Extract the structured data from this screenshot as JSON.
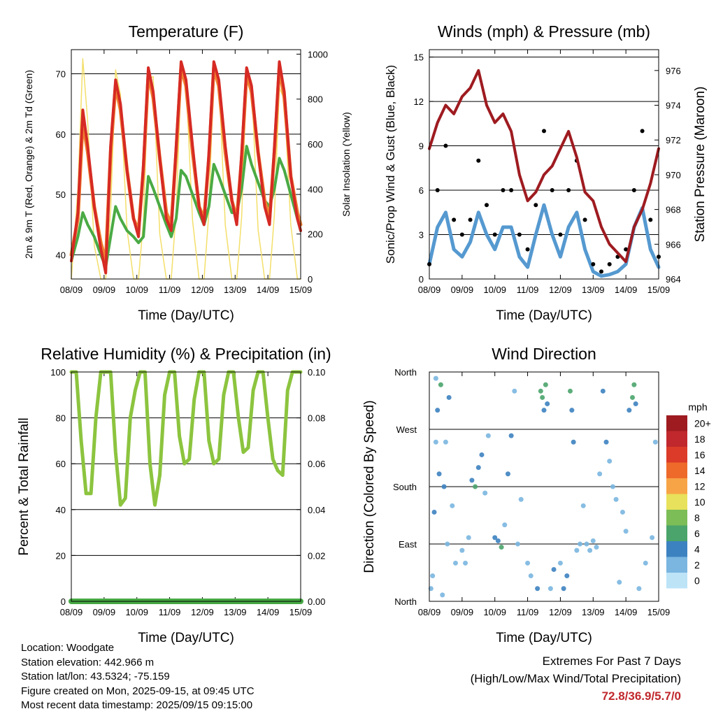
{
  "x_ticks": [
    "08/09",
    "09/09",
    "10/09",
    "11/09",
    "12/09",
    "13/09",
    "14/09",
    "15/09"
  ],
  "colors": {
    "temp2m": "#d62a24",
    "temp9m": "#f08030",
    "dewpoint": "#4aaa44",
    "solar": "#f3df6a",
    "wind": "#000000",
    "gust": "#5599d0",
    "pressure": "#9e1b20",
    "rh": "#8cc43f",
    "precip": "#46a843"
  },
  "chart_data": [
    {
      "id": "temperature",
      "type": "line",
      "title": "Temperature (F)",
      "xlabel": "Time (Day/UTC)",
      "ylabel": "2m & 9m T (Red, Orange) & 2m Td (Green)",
      "y2label": "Solar Insolation (Yellow)",
      "ylim": [
        36,
        74
      ],
      "y_ticks": [
        "40",
        "50",
        "60",
        "70"
      ],
      "y2lim": [
        0,
        1020
      ],
      "y2_ticks": [
        "0",
        "200",
        "400",
        "600",
        "800",
        "1000"
      ],
      "x": [
        0,
        0.2,
        0.35,
        0.5,
        0.7,
        0.9,
        1.05,
        1.2,
        1.35,
        1.5,
        1.7,
        1.9,
        2.05,
        2.2,
        2.35,
        2.5,
        2.7,
        2.9,
        3.05,
        3.2,
        3.35,
        3.5,
        3.7,
        3.9,
        4.05,
        4.2,
        4.35,
        4.5,
        4.7,
        4.9,
        5.05,
        5.2,
        5.35,
        5.5,
        5.7,
        5.9,
        6.05,
        6.2,
        6.35,
        6.5,
        6.7,
        6.9,
        7.0
      ],
      "series": [
        {
          "key": "temp2m",
          "values": [
            39,
            47,
            64,
            58,
            48,
            41,
            37,
            58,
            69,
            65,
            54,
            46,
            43,
            55,
            71,
            67,
            56,
            46,
            44,
            58,
            72,
            69,
            58,
            48,
            45,
            57,
            72,
            69,
            58,
            49,
            45,
            57,
            71,
            68,
            57,
            48,
            45,
            58,
            72,
            67,
            53,
            46,
            44
          ]
        },
        {
          "key": "temp9m",
          "values": [
            40,
            46,
            62,
            57,
            48,
            42,
            39,
            57,
            68,
            64,
            54,
            46,
            44,
            54,
            70,
            66,
            56,
            47,
            45,
            57,
            71,
            68,
            57,
            48,
            46,
            56,
            71,
            68,
            57,
            49,
            46,
            56,
            70,
            67,
            57,
            49,
            46,
            57,
            71,
            66,
            53,
            47,
            45
          ]
        },
        {
          "key": "dewpoint",
          "values": [
            39,
            43,
            47,
            45,
            43,
            40,
            38,
            43,
            48,
            46,
            44,
            43,
            42,
            43,
            53,
            51,
            48,
            45,
            43,
            46,
            54,
            53,
            50,
            47,
            45,
            48,
            55,
            53,
            50,
            47,
            47,
            51,
            58,
            55,
            52,
            49,
            48,
            51,
            56,
            54,
            50,
            46,
            44
          ]
        },
        {
          "key": "solar",
          "y_axis": "right",
          "values": [
            0,
            400,
            980,
            700,
            150,
            0,
            0,
            300,
            930,
            820,
            220,
            0,
            0,
            260,
            890,
            900,
            200,
            0,
            0,
            300,
            900,
            880,
            260,
            0,
            0,
            300,
            940,
            900,
            240,
            0,
            0,
            280,
            920,
            880,
            220,
            0,
            0,
            290,
            850,
            800,
            240,
            0,
            0
          ]
        }
      ]
    },
    {
      "id": "winds",
      "type": "line",
      "title": "Winds (mph) & Pressure (mb)",
      "xlabel": "Time (Day/UTC)",
      "ylabel": "Sonic/Prop Wind & Gust (Blue, Black)",
      "y2label": "Station Pressure (Maroon)",
      "ylim": [
        0,
        15.5
      ],
      "y_ticks": [
        "0",
        "3",
        "6",
        "9",
        "12",
        "15"
      ],
      "y2lim": [
        964,
        977.2
      ],
      "y2_ticks": [
        "964",
        "966",
        "968",
        "970",
        "972",
        "974",
        "976"
      ],
      "x": [
        0,
        0.25,
        0.5,
        0.75,
        1,
        1.25,
        1.5,
        1.75,
        2,
        2.25,
        2.5,
        2.75,
        3,
        3.25,
        3.5,
        3.75,
        4,
        4.25,
        4.5,
        4.75,
        5,
        5.25,
        5.5,
        5.75,
        6,
        6.25,
        6.5,
        6.75,
        7
      ],
      "series": [
        {
          "key": "gust",
          "values": [
            1,
            3.5,
            4.5,
            2,
            1.5,
            2.5,
            4.5,
            3,
            2,
            3.5,
            3.5,
            1.5,
            0.8,
            3,
            5,
            3,
            1.5,
            3.5,
            4.5,
            2,
            0.5,
            0.2,
            0.3,
            0.5,
            1,
            3.5,
            4.8,
            2,
            0.8
          ]
        },
        {
          "key": "wind",
          "values": [
            1,
            6,
            9,
            4,
            3,
            4,
            8,
            5,
            3,
            6,
            6,
            3,
            2,
            5,
            10,
            6,
            3,
            6,
            8,
            4,
            1,
            0.5,
            1,
            1.5,
            2,
            6,
            10,
            4,
            1.5
          ]
        },
        {
          "key": "pressure",
          "y_axis": "right",
          "values": [
            971.5,
            973,
            974,
            973.5,
            974.5,
            975,
            976,
            974,
            973,
            973.5,
            972.5,
            970,
            968.5,
            969,
            970,
            970.5,
            971.5,
            972.5,
            971,
            969,
            968.5,
            967,
            966,
            965.5,
            965,
            967,
            968,
            969.5,
            971.5
          ]
        }
      ]
    },
    {
      "id": "humidity",
      "type": "line",
      "title": "Relative Humidity (%) & Precipitation (in)",
      "xlabel": "Time (Day/UTC)",
      "ylabel": "Percent & Total Rainfall",
      "ylim": [
        0,
        100
      ],
      "y_ticks": [
        "0",
        "20",
        "40",
        "60",
        "80",
        "100"
      ],
      "y2lim": [
        0,
        0.1
      ],
      "y2_ticks": [
        "0.00",
        "0.02",
        "0.04",
        "0.06",
        "0.08",
        "0.10"
      ],
      "x": [
        0,
        0.15,
        0.3,
        0.45,
        0.6,
        0.75,
        0.9,
        1.05,
        1.2,
        1.35,
        1.5,
        1.65,
        1.8,
        1.95,
        2.1,
        2.25,
        2.4,
        2.55,
        2.7,
        2.85,
        3.0,
        3.15,
        3.3,
        3.45,
        3.6,
        3.75,
        3.9,
        4.05,
        4.2,
        4.35,
        4.5,
        4.65,
        4.8,
        4.95,
        5.1,
        5.25,
        5.4,
        5.55,
        5.7,
        5.85,
        6.0,
        6.15,
        6.3,
        6.45,
        6.6,
        6.75,
        6.9,
        7.0
      ],
      "series": [
        {
          "key": "rh",
          "values": [
            100,
            100,
            70,
            47,
            47,
            80,
            100,
            100,
            100,
            65,
            42,
            45,
            80,
            92,
            100,
            100,
            60,
            42,
            55,
            90,
            100,
            100,
            72,
            60,
            62,
            88,
            100,
            100,
            70,
            60,
            62,
            90,
            100,
            100,
            80,
            65,
            67,
            92,
            100,
            100,
            80,
            62,
            57,
            55,
            92,
            100,
            100,
            100
          ]
        },
        {
          "key": "precip",
          "y_axis": "right",
          "values": [
            0,
            0,
            0,
            0,
            0,
            0,
            0,
            0,
            0,
            0,
            0,
            0,
            0,
            0,
            0,
            0,
            0,
            0,
            0,
            0,
            0,
            0,
            0,
            0,
            0,
            0,
            0,
            0,
            0,
            0,
            0,
            0,
            0,
            0,
            0,
            0,
            0,
            0,
            0,
            0,
            0,
            0,
            0,
            0,
            0,
            0,
            0,
            0
          ]
        }
      ]
    },
    {
      "id": "direction",
      "type": "scatter",
      "title": "Wind Direction",
      "xlabel": "Time (Day/UTC)",
      "ylabel": "Direction (Colored By Speed)",
      "ylim": [
        0,
        360
      ],
      "y_tick_labels": [
        "North",
        "East",
        "South",
        "West",
        "North"
      ],
      "points": [
        [
          0.05,
          20,
          1
        ],
        [
          0.1,
          40,
          2
        ],
        [
          0.15,
          140,
          3
        ],
        [
          0.2,
          250,
          1
        ],
        [
          0.2,
          350,
          2
        ],
        [
          0.25,
          300,
          4
        ],
        [
          0.3,
          200,
          3
        ],
        [
          0.35,
          340,
          5
        ],
        [
          0.4,
          10,
          2
        ],
        [
          0.45,
          180,
          4
        ],
        [
          0.5,
          250,
          2
        ],
        [
          0.55,
          90,
          1
        ],
        [
          0.6,
          320,
          3
        ],
        [
          0.7,
          150,
          2
        ],
        [
          0.8,
          60,
          1
        ],
        [
          1.0,
          80,
          1
        ],
        [
          1.1,
          60,
          2
        ],
        [
          1.2,
          100,
          1
        ],
        [
          1.3,
          190,
          4
        ],
        [
          1.4,
          180,
          5
        ],
        [
          1.5,
          210,
          4
        ],
        [
          1.6,
          230,
          3
        ],
        [
          1.7,
          170,
          2
        ],
        [
          1.8,
          260,
          1
        ],
        [
          2.0,
          100,
          3
        ],
        [
          2.1,
          95,
          4
        ],
        [
          2.2,
          85,
          5
        ],
        [
          2.3,
          120,
          2
        ],
        [
          2.4,
          200,
          4
        ],
        [
          2.5,
          260,
          3
        ],
        [
          2.6,
          330,
          2
        ],
        [
          2.7,
          90,
          1
        ],
        [
          2.8,
          160,
          1
        ],
        [
          3.0,
          60,
          1
        ],
        [
          3.1,
          40,
          2
        ],
        [
          3.3,
          20,
          3
        ],
        [
          3.4,
          330,
          5
        ],
        [
          3.45,
          320,
          6
        ],
        [
          3.5,
          300,
          4
        ],
        [
          3.55,
          340,
          5
        ],
        [
          3.6,
          310,
          3
        ],
        [
          3.7,
          20,
          2
        ],
        [
          3.8,
          50,
          3
        ],
        [
          4.0,
          60,
          2
        ],
        [
          4.1,
          20,
          3
        ],
        [
          4.2,
          40,
          4
        ],
        [
          4.3,
          330,
          5
        ],
        [
          4.35,
          300,
          4
        ],
        [
          4.4,
          250,
          3
        ],
        [
          4.5,
          80,
          2
        ],
        [
          4.6,
          90,
          1
        ],
        [
          4.7,
          150,
          1
        ],
        [
          4.8,
          90,
          1
        ],
        [
          4.9,
          80,
          1
        ],
        [
          5.0,
          95,
          1
        ],
        [
          5.1,
          85,
          1
        ],
        [
          5.2,
          200,
          2
        ],
        [
          5.3,
          330,
          3
        ],
        [
          5.4,
          250,
          4
        ],
        [
          5.5,
          220,
          2
        ],
        [
          5.6,
          180,
          2
        ],
        [
          5.7,
          160,
          1
        ],
        [
          5.8,
          30,
          2
        ],
        [
          5.9,
          140,
          1
        ],
        [
          6.0,
          110,
          1
        ],
        [
          6.1,
          300,
          3
        ],
        [
          6.2,
          320,
          5
        ],
        [
          6.25,
          340,
          6
        ],
        [
          6.3,
          310,
          4
        ],
        [
          6.4,
          20,
          2
        ],
        [
          6.6,
          60,
          1
        ],
        [
          6.8,
          100,
          1
        ],
        [
          6.9,
          250,
          2
        ]
      ]
    }
  ],
  "color_bar": {
    "unit": "mph",
    "labels": [
      "20+",
      "18",
      "16",
      "14",
      "12",
      "10",
      "8",
      "6",
      "4",
      "2",
      "0"
    ],
    "colors": [
      "#9e1b20",
      "#c0282d",
      "#dc3b29",
      "#ee6a2a",
      "#f7a446",
      "#e8e15b",
      "#7cbd57",
      "#4aa46b",
      "#3d82c0",
      "#7ab6e0",
      "#bde3f7"
    ]
  },
  "info": {
    "location": "Location: Woodgate",
    "elevation": "Station elevation: 442.966 m",
    "latlon": "Station lat/lon: 43.5324; -75.159",
    "created": "Figure created on Mon, 2025-09-15, at 09:45 UTC",
    "recent": "Most recent data timestamp: 2025/09/15 09:15:00"
  },
  "extremes": {
    "title": "Extremes For Past 7 Days",
    "subtitle": "(High/Low/Max Wind/Total Precipitation)",
    "values": "72.8/36.9/5.7/0"
  }
}
